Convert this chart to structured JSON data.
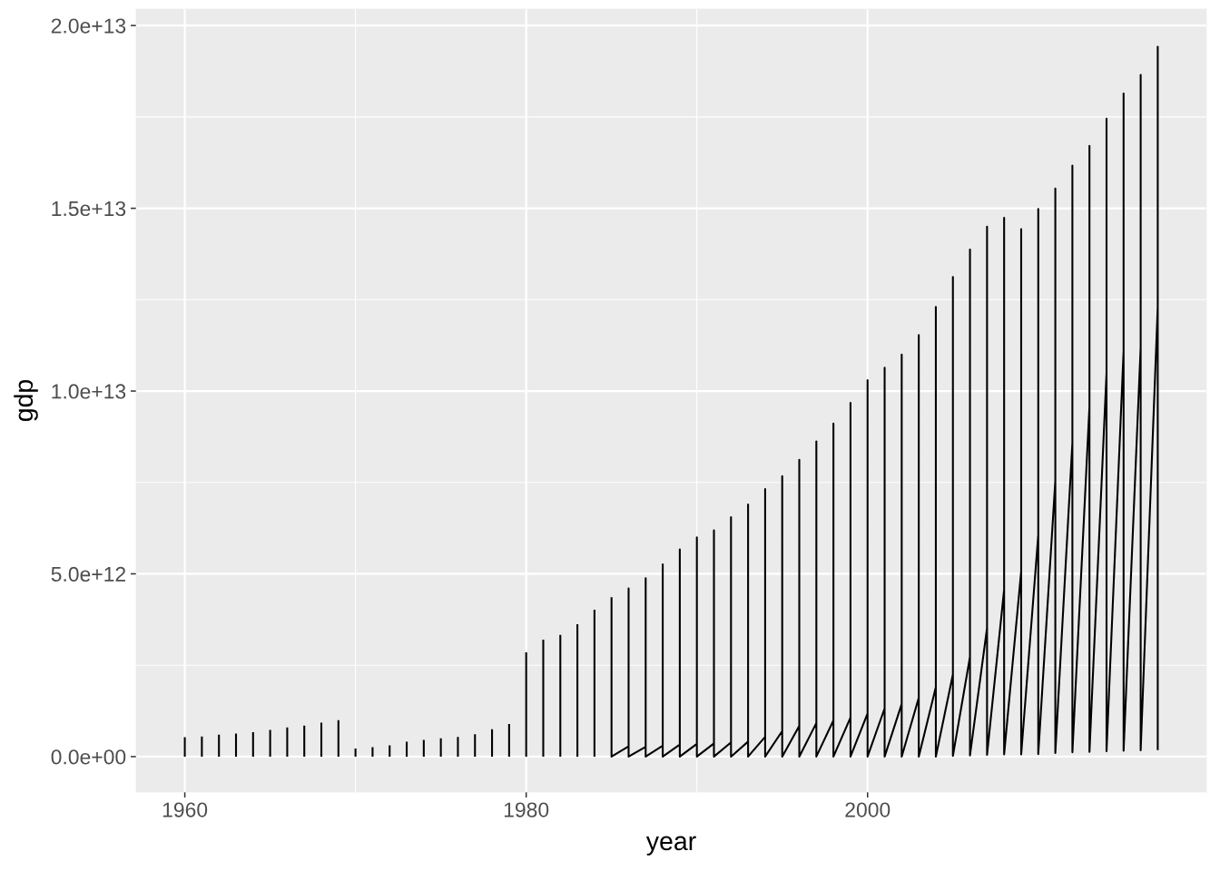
{
  "chart_data": {
    "type": "line",
    "xlabel": "year",
    "ylabel": "gdp",
    "x": [
      1960,
      1960,
      null,
      1961,
      1961,
      null,
      1962,
      1962,
      null,
      1963,
      1963,
      null,
      1964,
      1964,
      null,
      1965,
      1965,
      null,
      1966,
      1966,
      null,
      1967,
      1967,
      null,
      1968,
      1968,
      null,
      1969,
      1969,
      null,
      1970,
      1970,
      null,
      1971,
      1971,
      null,
      1972,
      1972,
      null,
      1973,
      1973,
      null,
      1974,
      1974,
      null,
      1975,
      1975,
      null,
      1976,
      1976,
      null,
      1977,
      1977,
      null,
      1978,
      1978,
      null,
      1979,
      1979,
      null,
      1980,
      1980,
      null,
      1981,
      1981,
      null,
      1982,
      1982,
      null,
      1983,
      1983,
      null,
      1984,
      1984,
      null,
      1985,
      1985,
      1986,
      1986,
      1986,
      1987,
      1987,
      1987,
      1988,
      1988,
      1988,
      1989,
      1989,
      1989,
      1990,
      1990,
      1990,
      1991,
      1991,
      1991,
      1992,
      1992,
      1992,
      1993,
      1993,
      1993,
      1994,
      1994,
      1994,
      1995,
      1995,
      1995,
      1996,
      1996,
      1996,
      1997,
      1997,
      1997,
      1998,
      1998,
      1998,
      1999,
      1999,
      1999,
      2000,
      2000,
      2000,
      2001,
      2001,
      2001,
      2002,
      2002,
      2002,
      2003,
      2003,
      2003,
      2004,
      2004,
      2004,
      2005,
      2005,
      2005,
      2006,
      2006,
      2006,
      2007,
      2007,
      2007,
      2008,
      2008,
      2008,
      2009,
      2009,
      2009,
      2010,
      2010,
      2010,
      2011,
      2011,
      2011,
      2012,
      2012,
      2012,
      2013,
      2013,
      2013,
      2014,
      2014,
      2014,
      2015,
      2015,
      2015,
      2016,
      2016,
      2016,
      2017,
      2017,
      2017
    ],
    "series": [
      {
        "color": "#000000",
        "values": [
          0,
          530000000000.0,
          null,
          0,
          550000000000.0,
          null,
          0,
          600000000000.0,
          null,
          0,
          630000000000.0,
          null,
          0,
          670000000000.0,
          null,
          0,
          730000000000.0,
          null,
          0,
          800000000000.0,
          null,
          0,
          850000000000.0,
          null,
          0,
          930000000000.0,
          null,
          0,
          1000000000000.0,
          null,
          0,
          220000000000.0,
          null,
          0,
          260000000000.0,
          null,
          0,
          310000000000.0,
          null,
          0,
          410000000000.0,
          null,
          0,
          460000000000.0,
          null,
          0,
          500000000000.0,
          null,
          0,
          540000000000.0,
          null,
          0,
          610000000000.0,
          null,
          0,
          750000000000.0,
          null,
          0,
          890000000000.0,
          null,
          0,
          2850000000000.0,
          null,
          0,
          3200000000000.0,
          null,
          0,
          3330000000000.0,
          null,
          0,
          3620000000000.0,
          null,
          0,
          4020000000000.0,
          null,
          4360000000000.0,
          0,
          280000000000.0,
          4600000000000.0,
          0,
          270000000000.0,
          4880000000000.0,
          0,
          300000000000.0,
          5260000000000.0,
          0,
          330000000000.0,
          5670000000000.0,
          0,
          350000000000.0,
          6000000000000.0,
          0,
          360000000000.0,
          6190000000000.0,
          0,
          390000000000.0,
          6550000000000.0,
          0,
          410000000000.0,
          6900000000000.0,
          0,
          540000000000.0,
          7320000000000.0,
          0,
          700000000000.0,
          7670000000000.0,
          0,
          840000000000.0,
          8120000000000.0,
          0,
          920000000000.0,
          8620000000000.0,
          0,
          990000000000.0,
          9110000000000.0,
          0,
          1070000000000.0,
          9680000000000.0,
          0,
          1180000000000.0,
          10300000000000.0,
          0,
          1320000000000.0,
          10640000000000.0,
          0,
          1440000000000.0,
          11000000000000.0,
          0,
          1610000000000.0,
          11530000000000.0,
          0,
          1900000000000.0,
          12300000000000.0,
          0,
          2250000000000.0,
          13120000000000.0,
          20000000000.0,
          2730000000000.0,
          13870000000000.0,
          30000000000.0,
          3520000000000.0,
          14500000000000.0,
          50000000000.0,
          4570000000000.0,
          14740000000000.0,
          60000000000.0,
          5070000000000.0,
          14430000000000.0,
          60000000000.0,
          6060000000000.0,
          14980000000000.0,
          70000000000.0,
          7550000000000.0,
          15540000000000.0,
          100000000000.0,
          8590000000000.0,
          16170000000000.0,
          120000000000.0,
          9580000000000.0,
          16710000000000.0,
          130000000000.0,
          10500000000000.0,
          17450000000000.0,
          150000000000.0,
          11100000000000.0,
          18140000000000.0,
          160000000000.0,
          11200000000000.0,
          18650000000000.0,
          170000000000.0,
          12300000000000.0,
          19420000000000.0,
          180000000000.0
        ]
      }
    ],
    "xlim": [
      1957.15,
      2019.85
    ],
    "ylim": [
      -970000000000.0,
      20450000000000.0
    ],
    "xticks": [
      1960,
      1980,
      2000
    ],
    "yticks": [
      {
        "value": 0,
        "label": "0.0e+00"
      },
      {
        "value": 5000000000000.0,
        "label": "5.0e+12"
      },
      {
        "value": 10000000000000.0,
        "label": "1.0e+13"
      },
      {
        "value": 15000000000000.0,
        "label": "1.5e+13"
      },
      {
        "value": 20000000000000.0,
        "label": "2.0e+13"
      }
    ],
    "grid": true
  }
}
